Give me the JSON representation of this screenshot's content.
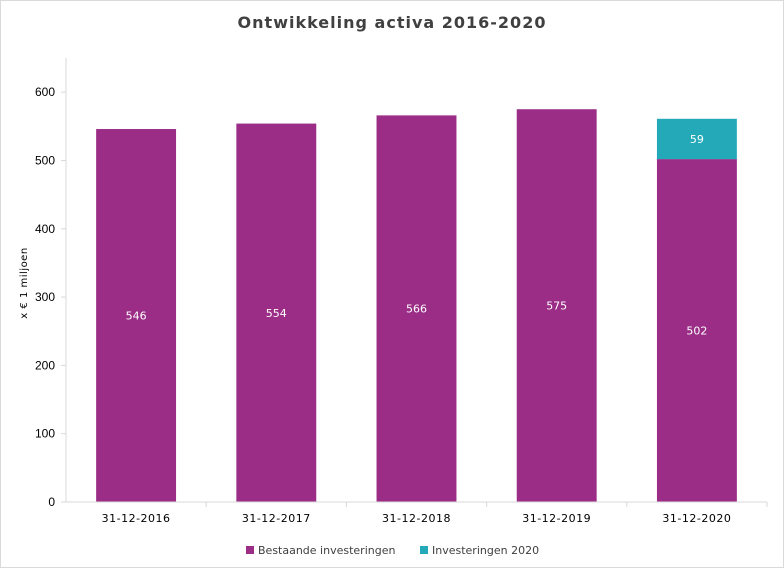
{
  "chart_data": {
    "type": "bar",
    "stacked": true,
    "title": "Ontwikkeling activa 2016-2020",
    "ylabel": "x € 1 miljoen",
    "xlabel": "",
    "ylim": [
      0,
      650
    ],
    "yticks": [
      0,
      100,
      200,
      300,
      400,
      500,
      600
    ],
    "grid": false,
    "legend_position": "bottom",
    "categories": [
      "31-12-2016",
      "31-12-2017",
      "31-12-2018",
      "31-12-2019",
      "31-12-2020"
    ],
    "series": [
      {
        "name": "Bestaande investeringen",
        "color": "#9b2d86",
        "values": [
          546,
          554,
          566,
          575,
          502
        ]
      },
      {
        "name": "Investeringen 2020",
        "color": "#24a9b9",
        "values": [
          null,
          null,
          null,
          null,
          59
        ]
      }
    ]
  }
}
